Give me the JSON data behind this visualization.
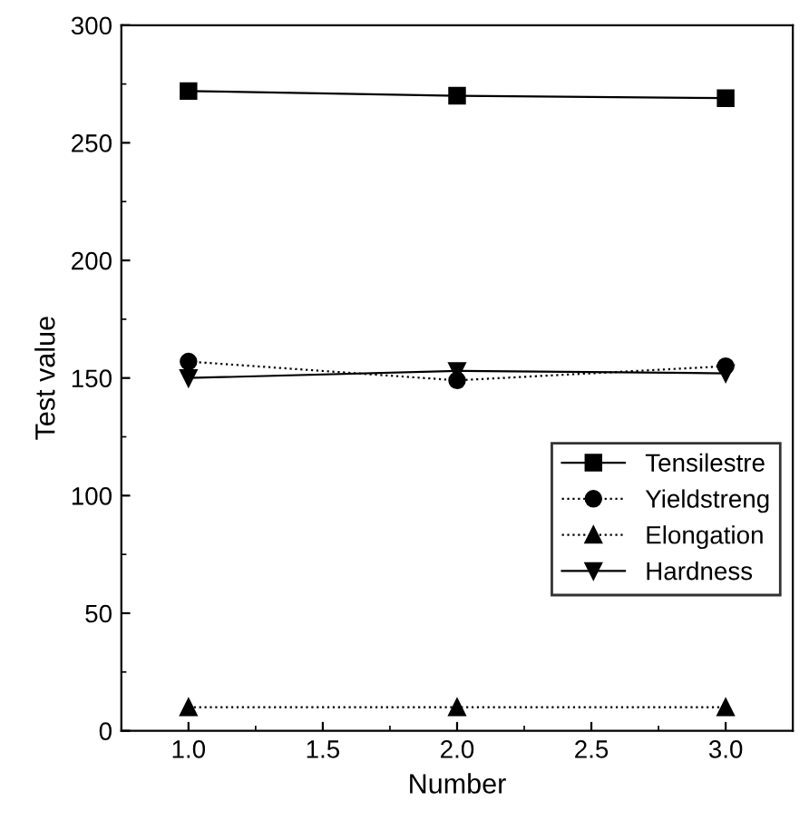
{
  "chart_data": {
    "type": "line",
    "xlabel": "Number",
    "ylabel": "Test value",
    "x": [
      1.0,
      2.0,
      3.0
    ],
    "series": [
      {
        "name": "Tensilestre",
        "color": "#000000",
        "values": [
          272,
          270,
          269
        ],
        "marker": "square",
        "line_style": "solid"
      },
      {
        "name": "Yieldstreng",
        "color": "#000000",
        "values": [
          157,
          149,
          155
        ],
        "marker": "circle",
        "line_style": "dotted"
      },
      {
        "name": "Elongation",
        "color": "#000000",
        "values": [
          10,
          10,
          10
        ],
        "marker": "triangle",
        "line_style": "dotted"
      },
      {
        "name": "Hardness",
        "color": "#000000",
        "values": [
          150,
          153,
          152
        ],
        "marker": "triangle_down",
        "line_style": "solid"
      }
    ],
    "xlim": [
      0.75,
      3.25
    ],
    "xticks": [
      {
        "value": 1.0,
        "label": "1.0"
      },
      {
        "value": 1.5,
        "label": "1.5"
      },
      {
        "value": 2.0,
        "label": "2.0"
      },
      {
        "value": 2.5,
        "label": "2.5"
      },
      {
        "value": 3.0,
        "label": "3.0"
      }
    ],
    "ylim": [
      0,
      300
    ],
    "yticks": [
      0,
      50,
      100,
      150,
      200,
      250,
      300
    ],
    "grid": false,
    "legend": "right"
  }
}
